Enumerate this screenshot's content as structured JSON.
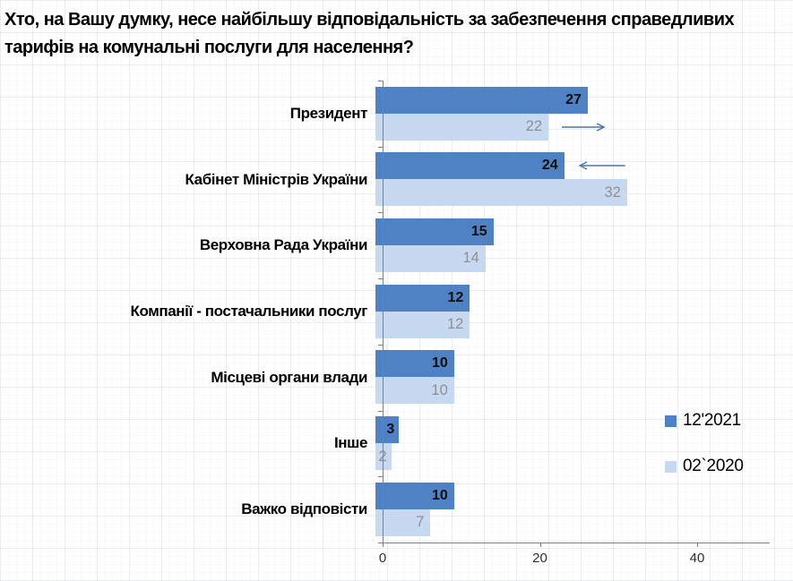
{
  "title": {
    "line1": "Хто, на Вашу думку, несе найбільшу відповідальність за забезпечення справедливих",
    "line2": "тарифів на комунальні послуги для населення?"
  },
  "chart_data": {
    "type": "bar",
    "orientation": "horizontal",
    "title": "Хто, на Вашу думку, несе найбільшу відповідальність за забезпечення справедливих тарифів на комунальні послуги для населення?",
    "categories": [
      "Президент",
      "Кабінет Міністрів України",
      "Верховна Рада України",
      "Компанії - постачальники послуг",
      "Місцеві органи влади",
      "Інше",
      "Важко відповісти"
    ],
    "series": [
      {
        "name": "12'2021",
        "color": "#4e82c4",
        "values": [
          27,
          24,
          15,
          12,
          10,
          3,
          10
        ]
      },
      {
        "name": "02`2020",
        "color": "#c6d9f1",
        "values": [
          22,
          32,
          14,
          12,
          10,
          2,
          7
        ]
      }
    ],
    "xlim": [
      0,
      49
    ],
    "xticks": [
      0,
      20,
      40
    ],
    "grid": false,
    "legend_position": "right",
    "value_labels": "inside-end",
    "arrow_color": "#4a74ad",
    "annotations": [
      {
        "type": "trend-arrow",
        "direction": "right",
        "row": 0,
        "series": 1,
        "from": 22.7,
        "to": 28.3
      },
      {
        "type": "trend-arrow",
        "direction": "left",
        "row": 1,
        "series": 0,
        "from": 30.9,
        "to": 24.9
      }
    ]
  },
  "legend": {
    "items": [
      {
        "label": "12'2021",
        "color": "#4e82c4"
      },
      {
        "label": "02`2020",
        "color": "#c6d9f1"
      }
    ]
  },
  "x_axis": {
    "labels": [
      "0",
      "20",
      "40"
    ]
  }
}
